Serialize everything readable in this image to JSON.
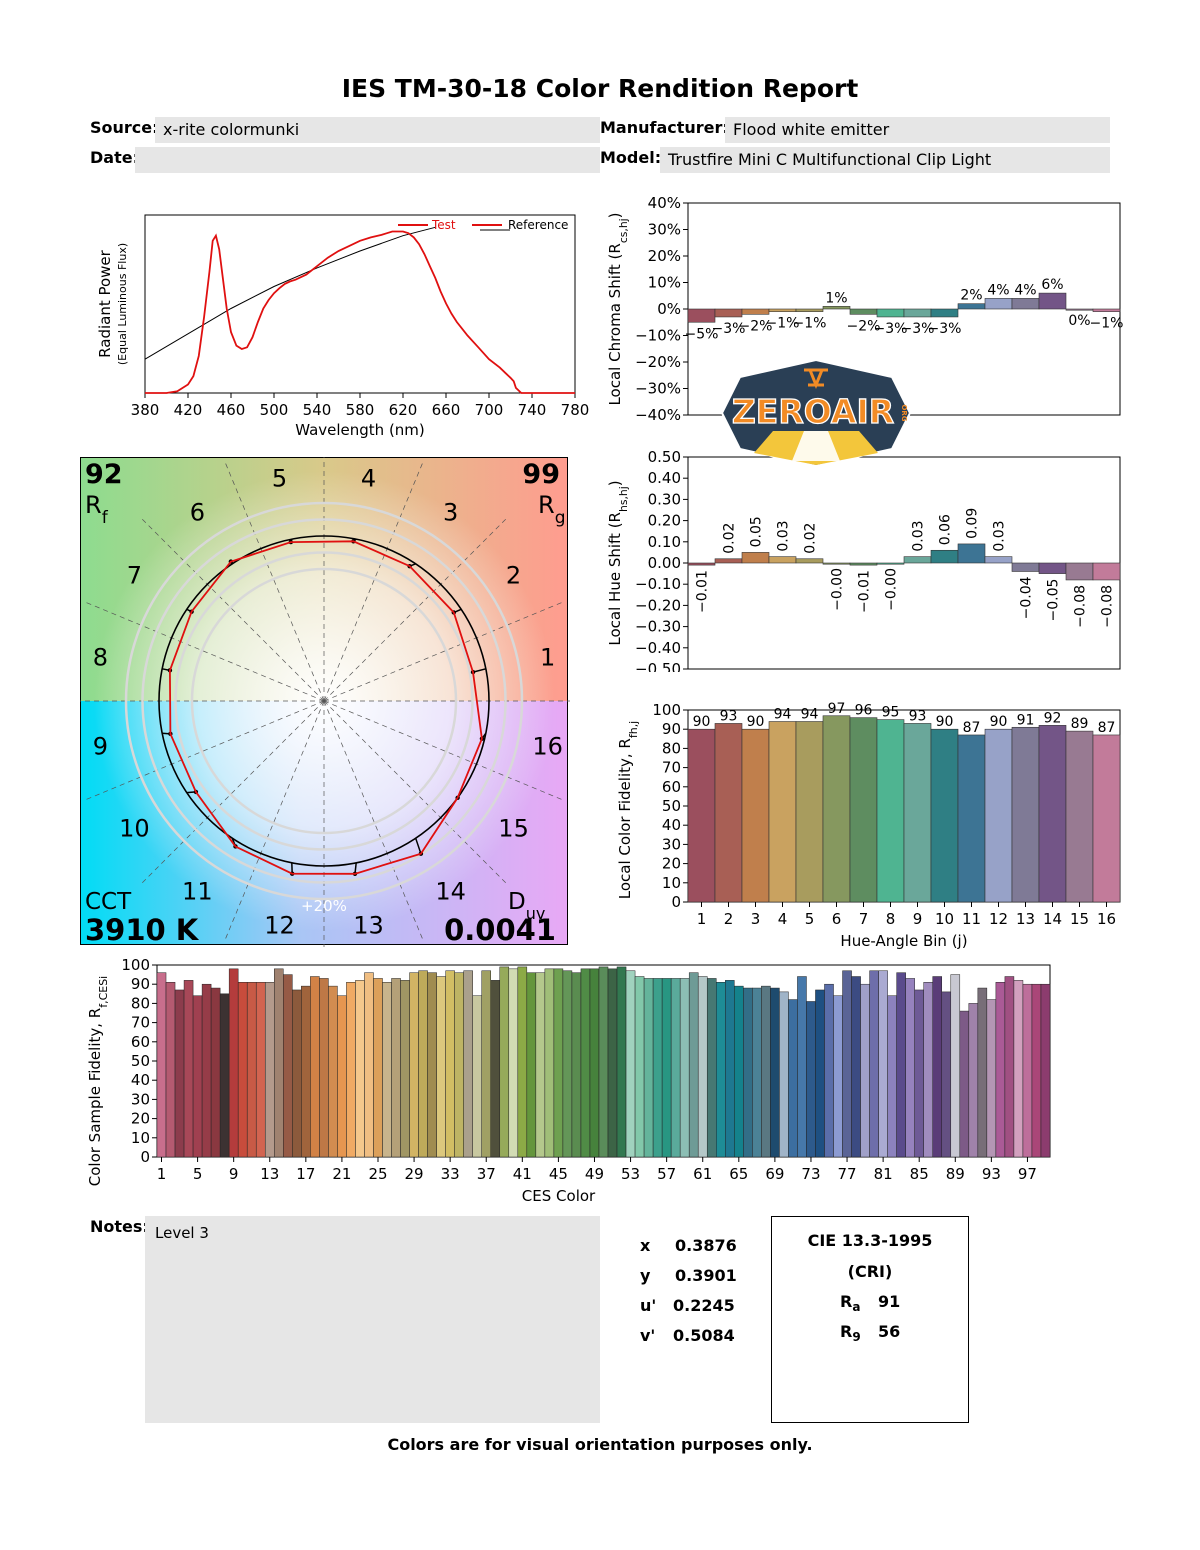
{
  "report": {
    "title": "IES TM-30-18 Color Rendition Report",
    "source_label": "Source:",
    "source_value": "x-rite colormunki",
    "manufacturer_label": "Manufacturer:",
    "manufacturer_value": "Flood white emitter",
    "date_label": "Date:",
    "date_value": "",
    "model_label": "Model:",
    "model_value": "Trustfire Mini C Multifunctional Clip Light",
    "notes_label": "Notes:",
    "notes_value": "Level 3",
    "footer": "Colors are for visual orientation purposes only."
  },
  "chromaticity": {
    "x_label": "x",
    "x_value": "0.3876",
    "y_label": "y",
    "y_value": "0.3901",
    "u_label": "u'",
    "u_value": "0.2245",
    "v_label": "v'",
    "v_value": "0.5084"
  },
  "cri": {
    "title": "CIE 13.3-1995",
    "subtitle": "(CRI)",
    "ra_label": "R",
    "ra_sub": "a",
    "ra_value": "91",
    "r9_label": "R",
    "r9_sub": "9",
    "r9_value": "56"
  },
  "vector": {
    "rf": "92",
    "rf_label": "R",
    "rf_sub": "f",
    "rg": "99",
    "rg_label": "R",
    "rg_sub": "g",
    "cct_label": "CCT",
    "cct": "3910 K",
    "duv_label": "D",
    "duv_sub": "uv",
    "duv": "0.0041",
    "ring_label": "+20%",
    "bin_labels": [
      "1",
      "2",
      "3",
      "4",
      "5",
      "6",
      "7",
      "8",
      "9",
      "10",
      "11",
      "12",
      "13",
      "14",
      "15",
      "16"
    ]
  },
  "watermark": {
    "text": "ZEROAIR",
    "sub": "ORG"
  },
  "colors": {
    "test_line": "#e01010",
    "bin_colors": [
      "#9b4f5e",
      "#a85f55",
      "#c07f4c",
      "#c9a260",
      "#a89c5e",
      "#86985f",
      "#5e8d60",
      "#4fb491",
      "#6aa79a",
      "#2f7f84",
      "#3d7494",
      "#97a2c8",
      "#7f7a96",
      "#735587",
      "#987a92",
      "#c27b9a"
    ],
    "ces_colors": [
      "#c86e8c",
      "#b45a70",
      "#8c3c4c",
      "#a84858",
      "#a04050",
      "#963c48",
      "#8a3840",
      "#3c3232",
      "#b43c3c",
      "#c84c3c",
      "#c85a46",
      "#d26450",
      "#b49a8c",
      "#a08270",
      "#965a46",
      "#8c5a3c",
      "#a0643c",
      "#d28246",
      "#be7846",
      "#d28c50",
      "#e69650",
      "#f0aa64",
      "#f5c88c",
      "#f0be82",
      "#dca05a",
      "#c8b48c",
      "#b4a078",
      "#a09664",
      "#d2b464",
      "#beaa5a",
      "#a08c50",
      "#dcc87d",
      "#d2be64",
      "#beb464",
      "#aaa08c",
      "#c8c8a0",
      "#a0a064",
      "#50503c",
      "#96aa5a",
      "#d2dcb4",
      "#8caa46",
      "#64963c",
      "#b4c88c",
      "#a0be78",
      "#6ea050",
      "#649658",
      "#5a8c50",
      "#508c46",
      "#46823c",
      "#5a8c5a",
      "#3c6446",
      "#327850",
      "#a0d2be",
      "#82c8aa",
      "#64b49b",
      "#3ca08c",
      "#289682",
      "#5aaa9b",
      "#8cbeb4",
      "#6e9b96",
      "#b4c8c8",
      "#467873",
      "#1e8c96",
      "#1e7891",
      "#14828c",
      "#326e87",
      "#4b8296",
      "#5a7882",
      "#1e4b6e",
      "#a0b4c8",
      "#3c6ea0",
      "#4678aa",
      "#2d5a8c",
      "#1e5082",
      "#5a6eaa",
      "#8c9bd2",
      "#5a6496",
      "#3c4b82",
      "#a0a0c8",
      "#6e6eaa",
      "#aaaad2",
      "#8c82be",
      "#5a4b8c",
      "#9682be",
      "#6e5a96",
      "#a08cbe",
      "#5a3c78",
      "#645082",
      "#c8c8d2",
      "#7d5a87",
      "#a082aa",
      "#786e78",
      "#b496b4",
      "#aa5a96",
      "#a05082",
      "#d2a0be",
      "#be6e9b",
      "#aa4678",
      "#8c3c6e"
    ]
  },
  "spd_chart": {
    "type": "line",
    "xlabel": "Wavelength (nm)",
    "ylabel": "Radiant Power",
    "ylabel_sub": "(Equal Luminous Flux)",
    "xlim": [
      380,
      780
    ],
    "xticks": [
      380,
      420,
      460,
      500,
      540,
      580,
      620,
      660,
      700,
      740,
      780
    ],
    "legend_test": "Test",
    "legend_ref": "Reference",
    "test": {
      "name": "Test",
      "x": [
        380,
        400,
        410,
        420,
        425,
        430,
        435,
        440,
        443,
        446,
        449,
        452,
        456,
        460,
        465,
        470,
        475,
        480,
        485,
        490,
        495,
        500,
        505,
        510,
        515,
        520,
        530,
        540,
        550,
        560,
        570,
        580,
        590,
        600,
        605,
        610,
        615,
        620,
        625,
        630,
        635,
        640,
        645,
        650,
        655,
        660,
        665,
        670,
        675,
        680,
        690,
        700,
        710,
        715,
        720,
        723,
        725,
        730,
        780
      ],
      "y": [
        0,
        0,
        0.01,
        0.05,
        0.1,
        0.22,
        0.45,
        0.72,
        0.9,
        0.93,
        0.85,
        0.7,
        0.5,
        0.36,
        0.28,
        0.26,
        0.27,
        0.33,
        0.42,
        0.5,
        0.55,
        0.59,
        0.62,
        0.645,
        0.66,
        0.67,
        0.7,
        0.75,
        0.8,
        0.84,
        0.87,
        0.9,
        0.92,
        0.935,
        0.945,
        0.955,
        0.955,
        0.955,
        0.945,
        0.92,
        0.88,
        0.82,
        0.75,
        0.68,
        0.6,
        0.53,
        0.47,
        0.42,
        0.38,
        0.34,
        0.27,
        0.2,
        0.15,
        0.12,
        0.09,
        0.07,
        0.03,
        0,
        0
      ]
    },
    "reference": {
      "name": "Reference",
      "x": [
        380,
        420,
        460,
        500,
        540,
        580,
        620,
        650
      ],
      "y": [
        0.2,
        0.35,
        0.5,
        0.63,
        0.74,
        0.84,
        0.93,
        0.98
      ]
    }
  },
  "chroma_chart": {
    "type": "bar",
    "ylabel": "Local Chroma Shift (Rcs,hj)",
    "ylim": [
      -40,
      40
    ],
    "yticks": [
      "40%",
      "30%",
      "20%",
      "10%",
      "0%",
      "−10%",
      "−20%",
      "−30%",
      "−40%"
    ],
    "values": [
      -5,
      -3,
      -2,
      -1,
      -1,
      1,
      -2,
      -3,
      -3,
      -3,
      2,
      4,
      4,
      6,
      0,
      -1
    ],
    "labels": [
      "−5%",
      "−3%",
      "−2%",
      "−1%",
      "−1%",
      "1%",
      "−2%",
      "−3%",
      "−3%",
      "−3%",
      "2%",
      "4%",
      "4%",
      "6%",
      "0%",
      "−1%"
    ]
  },
  "hue_chart": {
    "type": "bar",
    "ylabel": "Local Hue Shift (Rhs,hj)",
    "ylim": [
      -0.5,
      0.5
    ],
    "yticks": [
      "0.50",
      "0.40",
      "0.30",
      "0.20",
      "0.10",
      "0.00",
      "−0.10",
      "−0.20",
      "−0.30",
      "−0.40",
      "−0.50"
    ],
    "values": [
      -0.01,
      0.02,
      0.05,
      0.03,
      0.02,
      -0.0,
      -0.01,
      -0.0,
      0.03,
      0.06,
      0.09,
      0.03,
      -0.04,
      -0.05,
      -0.08,
      -0.08
    ],
    "labels": [
      "−0.01",
      "0.02",
      "0.05",
      "0.03",
      "0.02",
      "−0.00",
      "−0.01",
      "−0.00",
      "0.03",
      "0.06",
      "0.09",
      "0.03",
      "−0.04",
      "−0.05",
      "−0.08",
      "−0.08"
    ]
  },
  "fidelity_chart": {
    "type": "bar",
    "ylabel": "Local Color Fidelity, Rf,hj",
    "xlabel": "Hue-Angle Bin (j)",
    "ylim": [
      0,
      100
    ],
    "yticks": [
      "100",
      "90",
      "80",
      "70",
      "60",
      "50",
      "40",
      "30",
      "20",
      "10",
      "0"
    ],
    "categories": [
      "1",
      "2",
      "3",
      "4",
      "5",
      "6",
      "7",
      "8",
      "9",
      "10",
      "11",
      "12",
      "13",
      "14",
      "15",
      "16"
    ],
    "values": [
      90,
      93,
      90,
      94,
      94,
      97,
      96,
      95,
      93,
      90,
      87,
      90,
      91,
      92,
      89,
      87
    ]
  },
  "ces_chart": {
    "type": "bar",
    "ylabel": "Color Sample Fidelity, Rf,CESi",
    "xlabel": "CES Color",
    "ylim": [
      0,
      100
    ],
    "yticks": [
      "100",
      "90",
      "80",
      "70",
      "60",
      "50",
      "40",
      "30",
      "20",
      "10",
      "0"
    ],
    "xticks": [
      "1",
      "5",
      "9",
      "13",
      "17",
      "21",
      "25",
      "29",
      "33",
      "37",
      "41",
      "45",
      "49",
      "53",
      "57",
      "61",
      "65",
      "69",
      "73",
      "77",
      "81",
      "85",
      "89",
      "93",
      "97"
    ],
    "values": [
      96,
      91,
      87,
      92,
      84,
      90,
      88,
      85,
      98,
      91,
      91,
      91,
      91,
      98,
      95,
      87,
      89,
      94,
      93,
      89,
      84,
      91,
      92,
      96,
      93,
      91,
      93,
      92,
      96,
      97,
      96,
      94,
      97,
      96,
      97,
      84,
      97,
      92,
      99,
      98,
      99,
      96,
      96,
      98,
      98,
      97,
      96,
      98,
      98,
      99,
      98,
      99,
      97,
      94,
      93,
      93,
      93,
      93,
      93,
      96,
      94,
      93,
      91,
      92,
      89,
      88,
      88,
      89,
      88,
      86,
      82,
      94,
      81,
      87,
      90,
      84,
      97,
      94,
      90,
      97,
      97,
      84,
      96,
      93,
      87,
      91,
      94,
      86,
      95,
      76,
      80,
      88,
      82,
      91,
      94,
      92,
      90
    ]
  }
}
